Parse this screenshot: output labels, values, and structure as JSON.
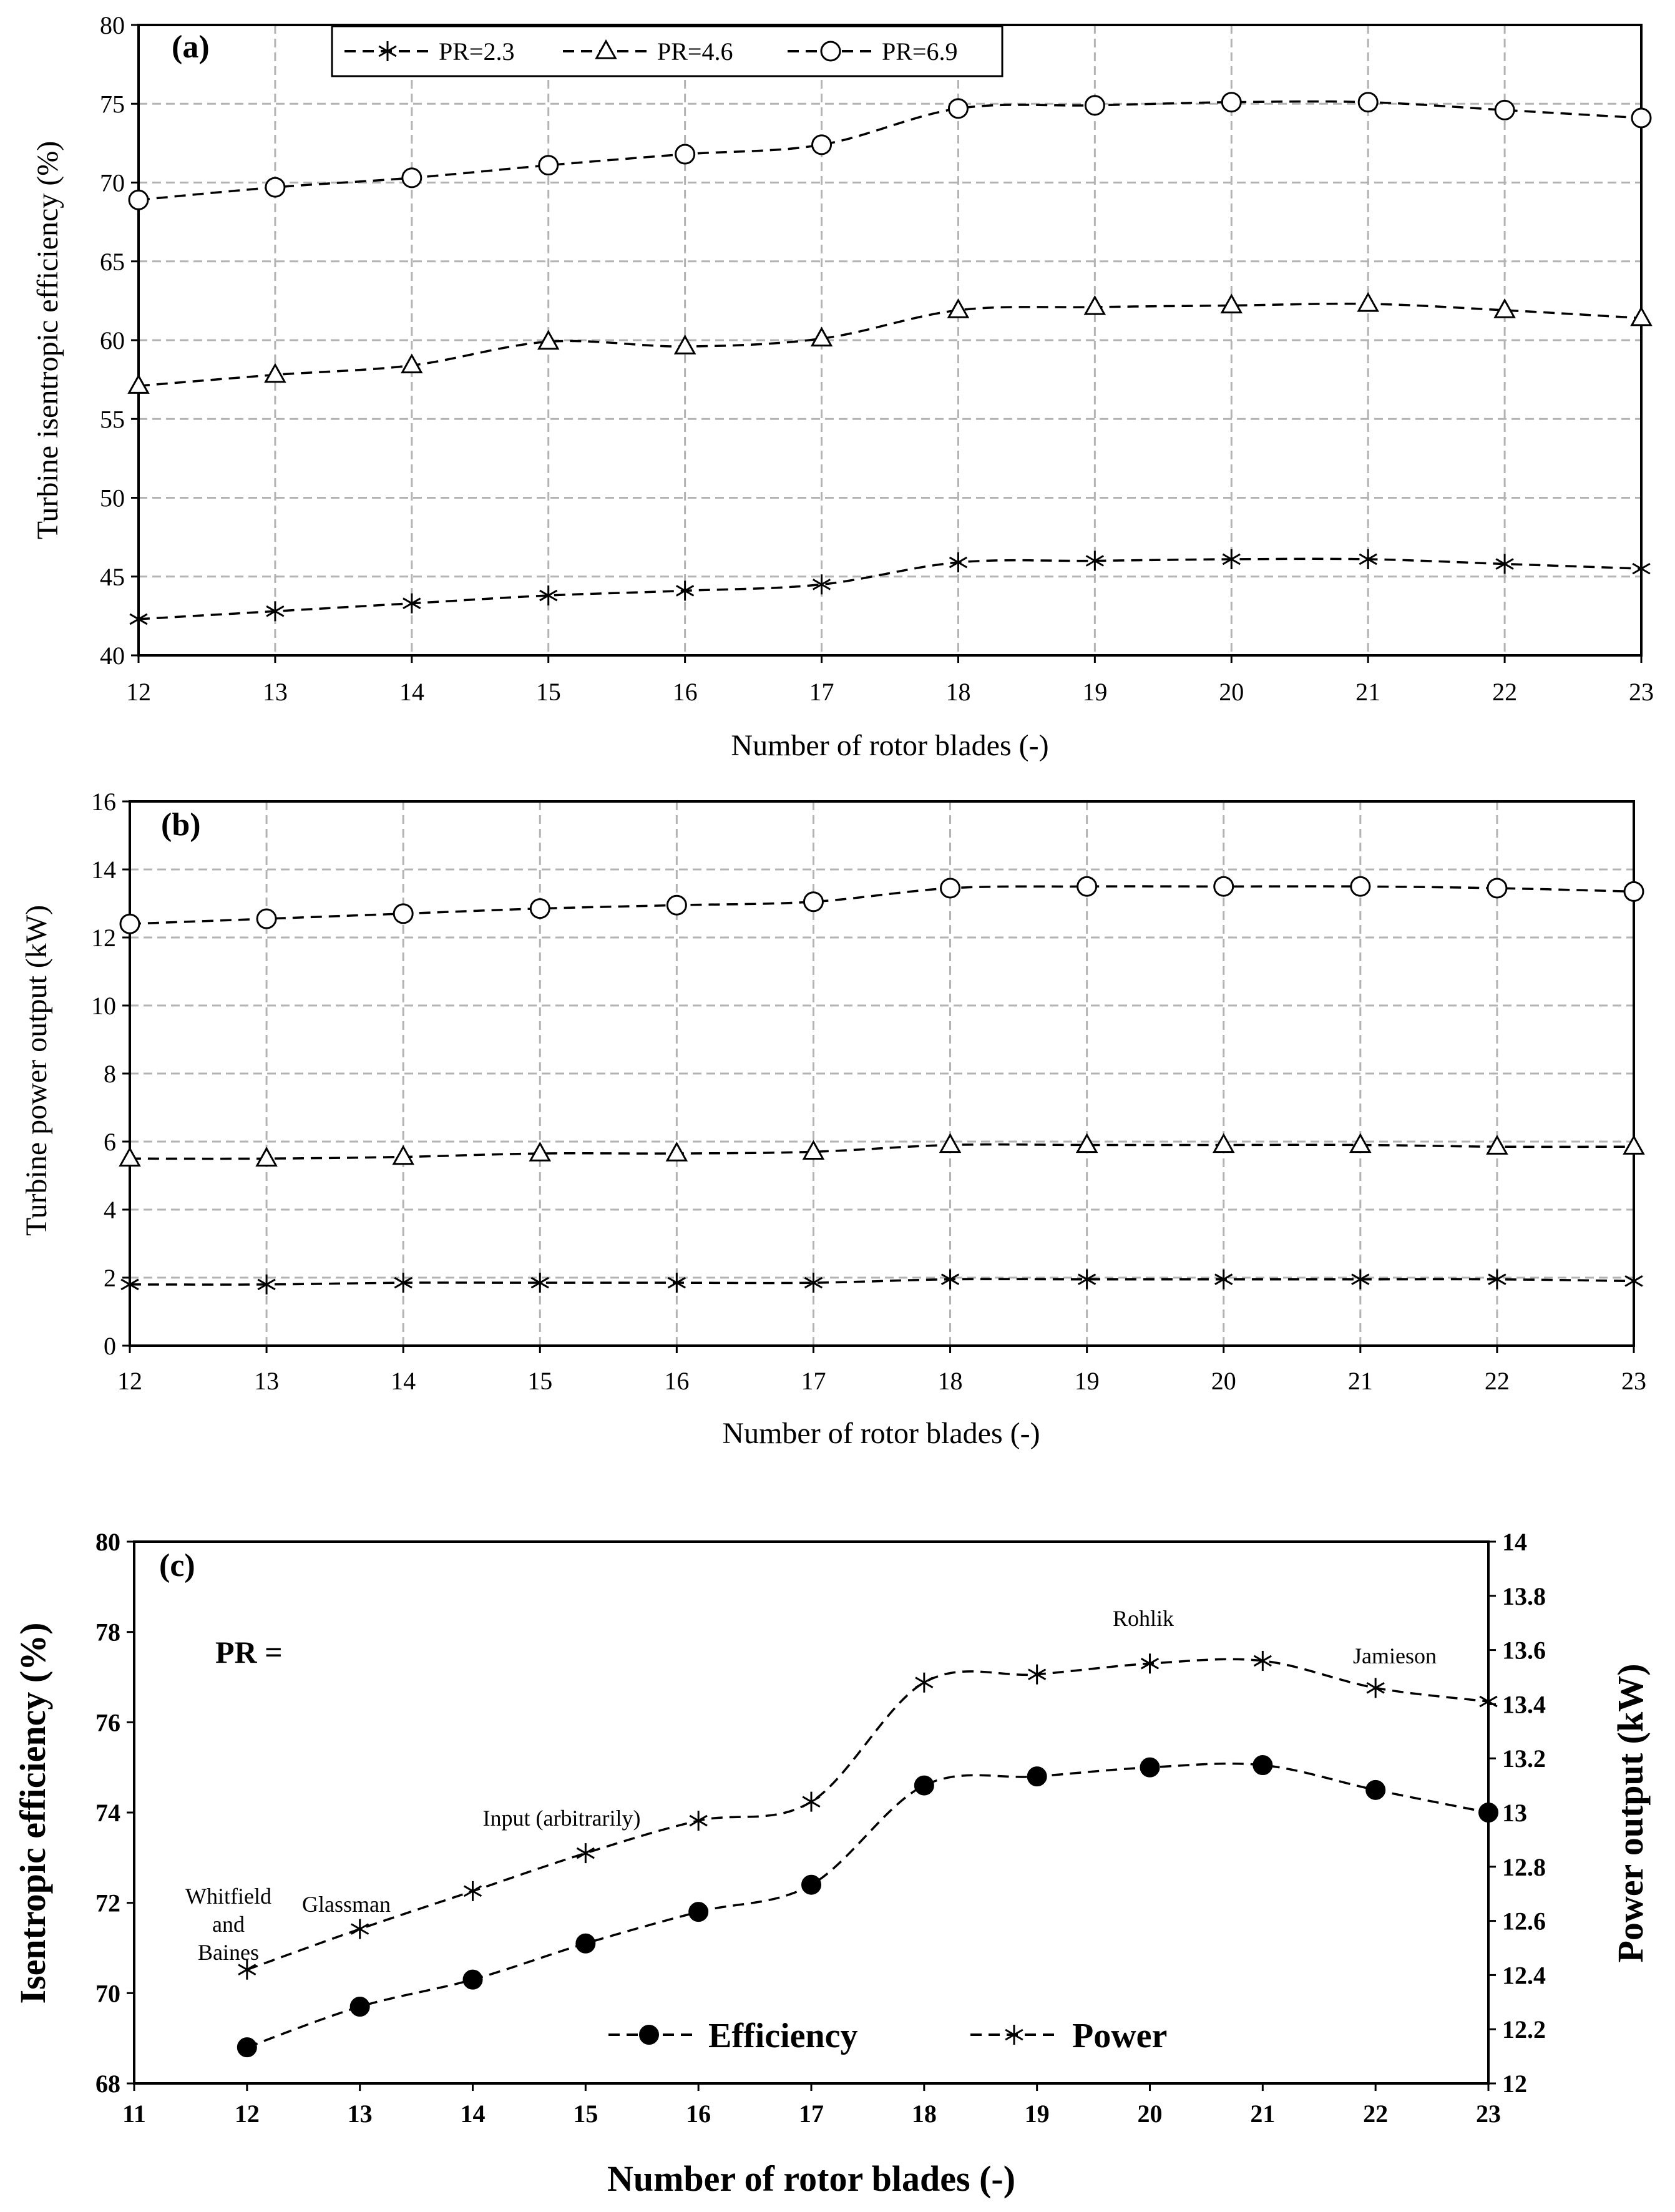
{
  "chart_data": [
    {
      "type": "line",
      "panel_label": "(a)",
      "title": "",
      "xlabel": "Number of rotor blades (-)",
      "ylabel": "Turbine isentropic efficiency (%)",
      "xlim": [
        12,
        23
      ],
      "ylim": [
        40,
        80
      ],
      "xticks": [
        12,
        13,
        14,
        15,
        16,
        17,
        18,
        19,
        20,
        21,
        22,
        23
      ],
      "yticks": [
        40,
        45,
        50,
        55,
        60,
        65,
        70,
        75,
        80
      ],
      "grid": true,
      "legend_position": "top",
      "x": [
        12,
        13,
        14,
        15,
        16,
        17,
        18,
        19,
        20,
        21,
        22,
        23
      ],
      "series": [
        {
          "name": "PR=2.3",
          "marker": "asterisk",
          "values": [
            42.3,
            42.8,
            43.3,
            43.8,
            44.1,
            44.5,
            45.9,
            46.0,
            46.1,
            46.1,
            45.8,
            45.5
          ]
        },
        {
          "name": "PR=4.6",
          "marker": "triangle",
          "values": [
            57.1,
            57.8,
            58.4,
            59.9,
            59.6,
            60.1,
            61.9,
            62.1,
            62.2,
            62.3,
            61.9,
            61.4
          ]
        },
        {
          "name": "PR=6.9",
          "marker": "circle",
          "values": [
            68.9,
            69.7,
            70.3,
            71.1,
            71.8,
            72.4,
            74.7,
            74.9,
            75.1,
            75.1,
            74.6,
            74.1
          ]
        }
      ]
    },
    {
      "type": "line",
      "panel_label": "(b)",
      "title": "",
      "xlabel": "Number of rotor blades (-)",
      "ylabel": "Turbine power output (kW)",
      "xlim": [
        12,
        23
      ],
      "ylim": [
        0,
        16
      ],
      "xticks": [
        12,
        13,
        14,
        15,
        16,
        17,
        18,
        19,
        20,
        21,
        22,
        23
      ],
      "yticks": [
        0,
        2,
        4,
        6,
        8,
        10,
        12,
        14,
        16
      ],
      "grid": true,
      "x": [
        12,
        13,
        14,
        15,
        16,
        17,
        18,
        19,
        20,
        21,
        22,
        23
      ],
      "series": [
        {
          "name": "PR=2.3",
          "marker": "asterisk",
          "values": [
            1.8,
            1.8,
            1.85,
            1.85,
            1.85,
            1.85,
            1.95,
            1.95,
            1.95,
            1.95,
            1.95,
            1.9
          ]
        },
        {
          "name": "PR=4.6",
          "marker": "triangle",
          "values": [
            5.5,
            5.5,
            5.55,
            5.65,
            5.65,
            5.7,
            5.9,
            5.9,
            5.9,
            5.9,
            5.85,
            5.85
          ]
        },
        {
          "name": "PR=6.9",
          "marker": "circle",
          "values": [
            12.4,
            12.55,
            12.7,
            12.85,
            12.95,
            13.05,
            13.45,
            13.5,
            13.5,
            13.5,
            13.45,
            13.35
          ]
        }
      ]
    },
    {
      "type": "line",
      "panel_label": "(c)",
      "title": "",
      "xlabel": "Number of rotor blades (-)",
      "ylabel": "Isentropic efficiency (%)",
      "ylabel_right": "Power output (kW)",
      "xlim": [
        11,
        23
      ],
      "ylim": [
        68,
        80
      ],
      "ylim_right": [
        12,
        14
      ],
      "xticks": [
        11,
        12,
        13,
        14,
        15,
        16,
        17,
        18,
        19,
        20,
        21,
        22,
        23
      ],
      "yticks": [
        68,
        70,
        72,
        74,
        76,
        78,
        80
      ],
      "yticks_right": [
        12,
        12.2,
        12.4,
        12.6,
        12.8,
        13,
        13.2,
        13.4,
        13.6,
        13.8,
        14
      ],
      "grid": false,
      "legend_position": "bottom",
      "pr_label": "PR =",
      "x": [
        12,
        13,
        14,
        15,
        16,
        17,
        18,
        19,
        20,
        21,
        22,
        23
      ],
      "series": [
        {
          "name": "Efficiency",
          "axis": "left",
          "marker": "filled-circle",
          "values": [
            68.8,
            69.7,
            70.3,
            71.1,
            71.8,
            72.4,
            74.6,
            74.8,
            75.0,
            75.05,
            74.5,
            74.0
          ]
        },
        {
          "name": "Power",
          "axis": "right",
          "marker": "asterisk",
          "values": [
            12.42,
            12.57,
            12.71,
            12.85,
            12.97,
            13.04,
            13.48,
            13.51,
            13.55,
            13.56,
            13.46,
            13.41
          ]
        }
      ],
      "annotations": [
        "Whitfield",
        "and",
        "Baines",
        "Glassman",
        "Input (arbitrarily)",
        "Rohlik",
        "Jamieson"
      ]
    }
  ]
}
